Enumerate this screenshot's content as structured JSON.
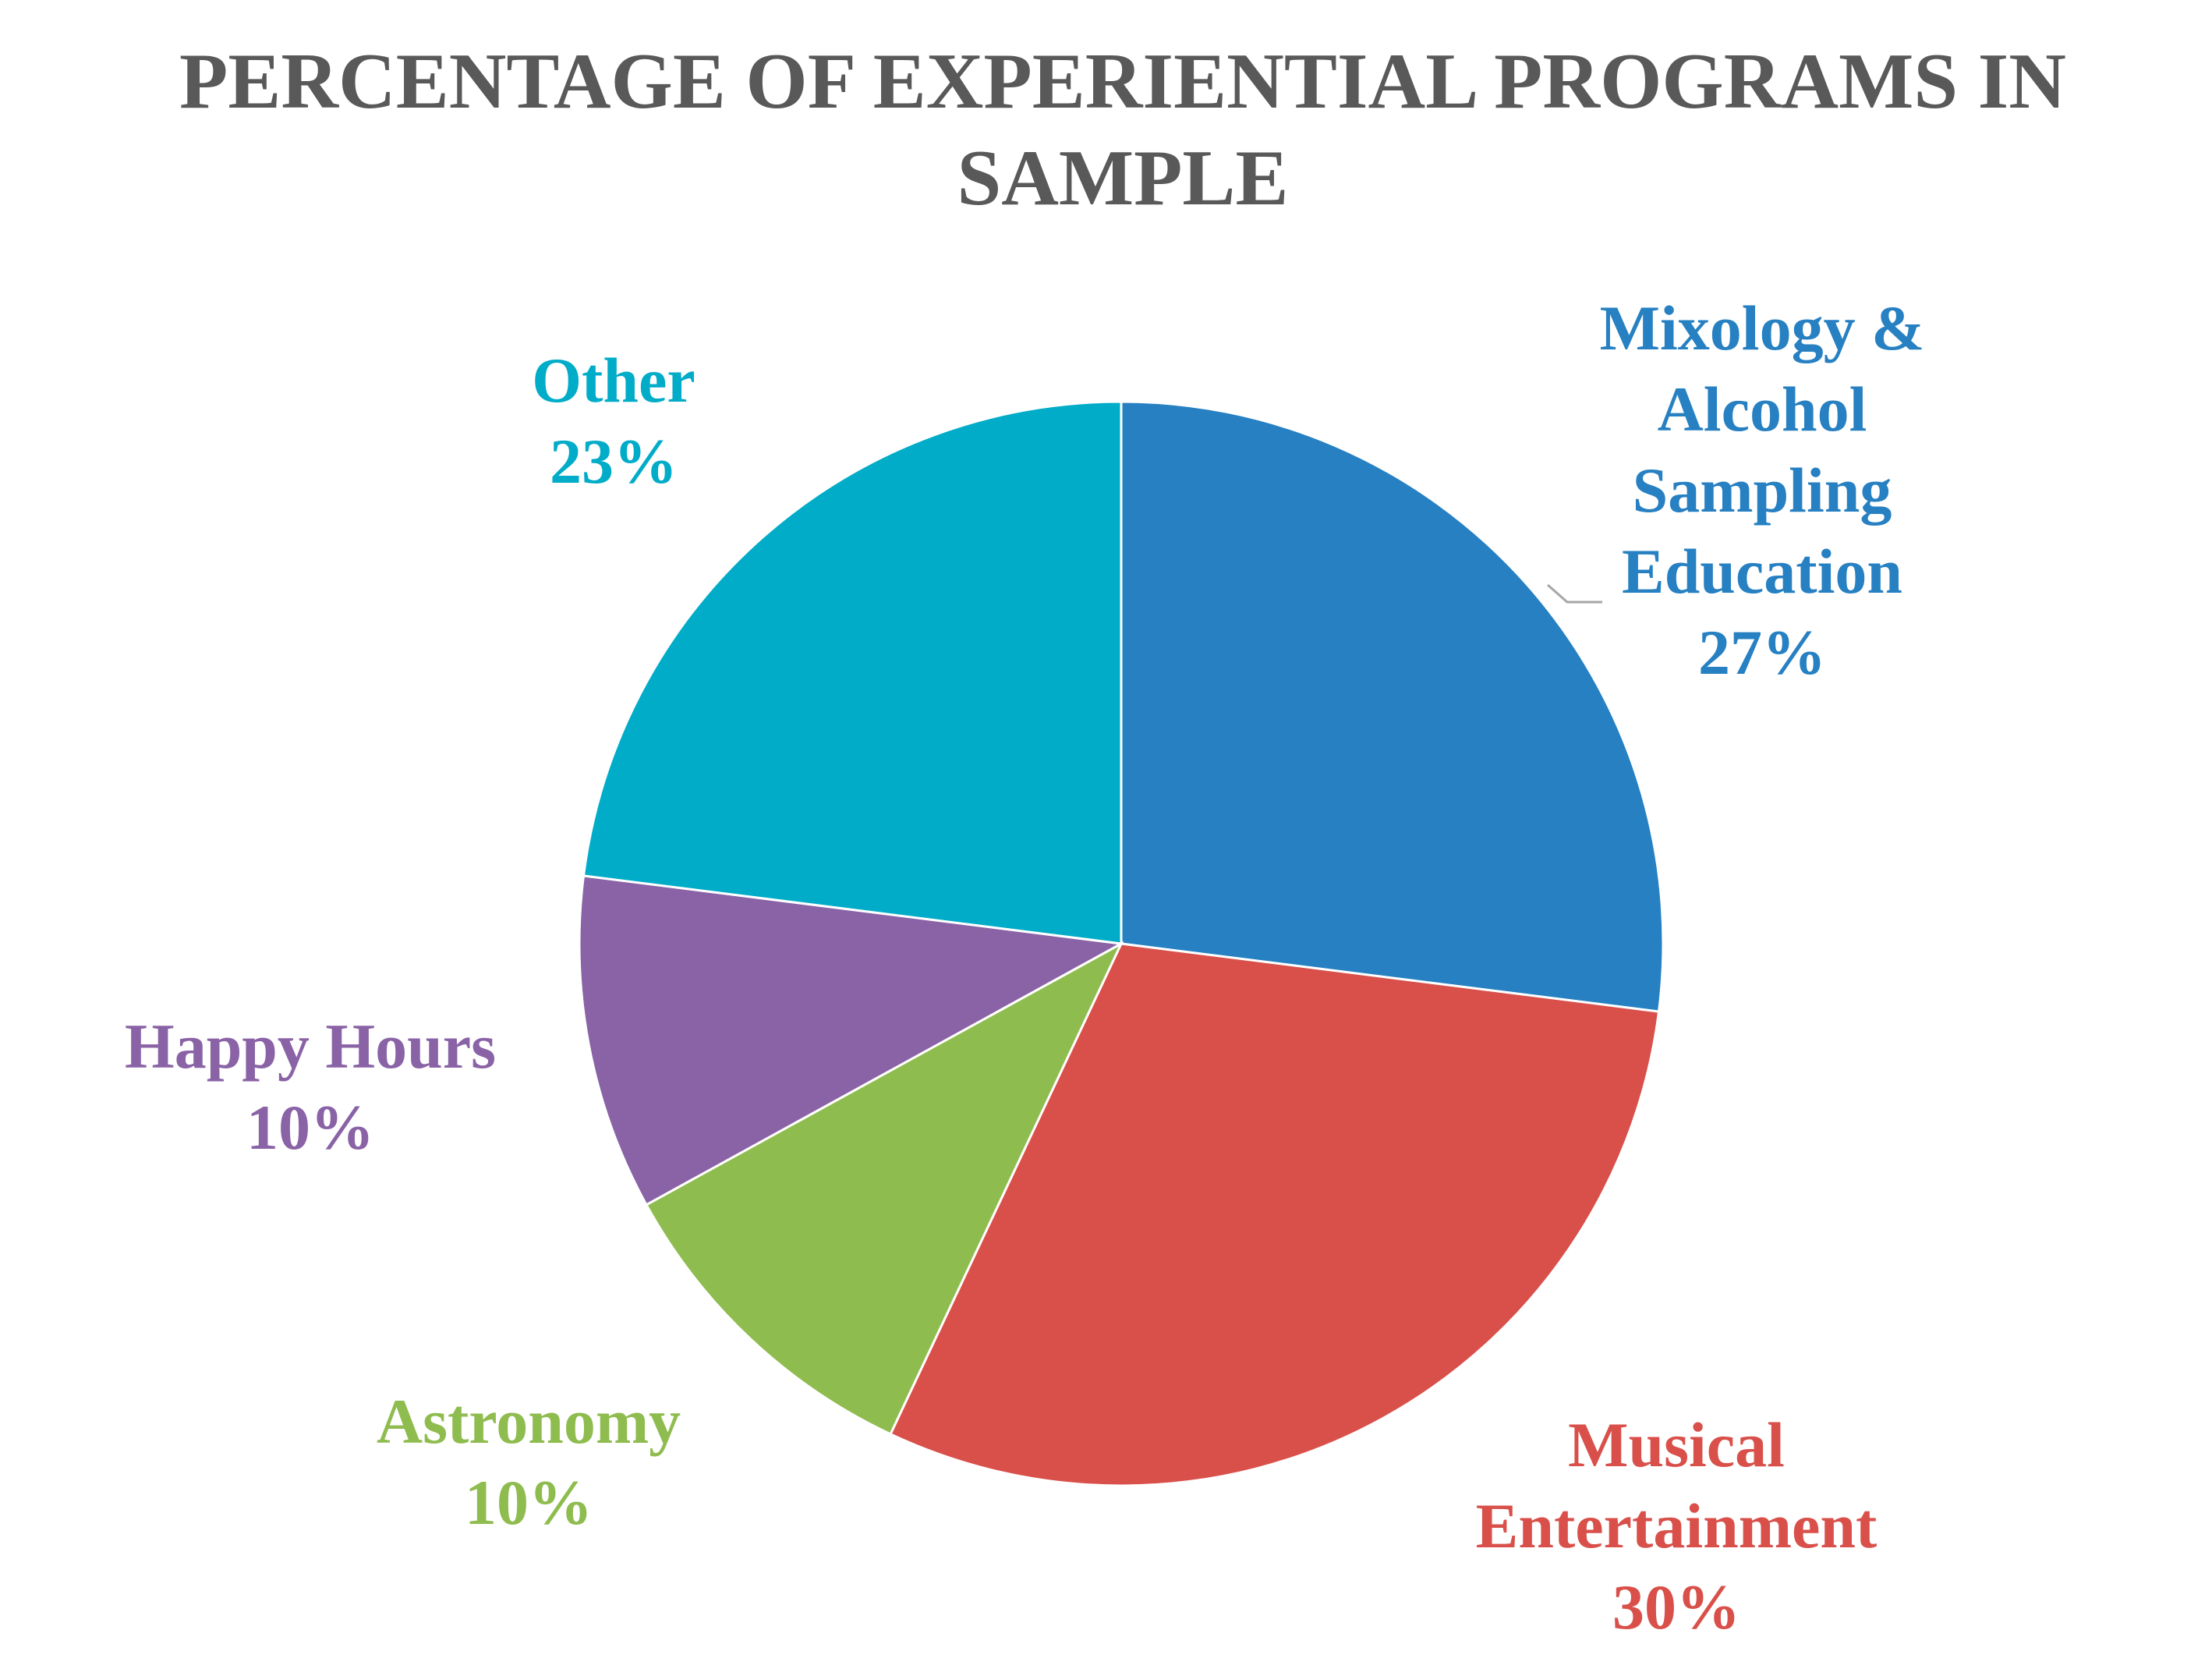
{
  "chart_data": {
    "type": "pie",
    "title_lines": [
      "PERCENTAGE OF EXPERIENTIAL PROGRAMS IN",
      "SAMPLE"
    ],
    "title_color": "#595959",
    "start_angle_deg": 0,
    "direction": "clockwise",
    "slices": [
      {
        "label_lines": [
          "Mixology &",
          "Alcohol",
          "Sampling",
          "Education"
        ],
        "value": 27,
        "value_label": "27%",
        "color": "#2680C2"
      },
      {
        "label_lines": [
          "Musical",
          "Entertainment"
        ],
        "value": 30,
        "value_label": "30%",
        "color": "#D9504A"
      },
      {
        "label_lines": [
          "Astronomy"
        ],
        "value": 10,
        "value_label": "10%",
        "color": "#8FBC4F"
      },
      {
        "label_lines": [
          "Happy Hours"
        ],
        "value": 10,
        "value_label": "10%",
        "color": "#8A63A6"
      },
      {
        "label_lines": [
          "Other"
        ],
        "value": 23,
        "value_label": "23%",
        "color": "#00ACC8"
      }
    ]
  }
}
